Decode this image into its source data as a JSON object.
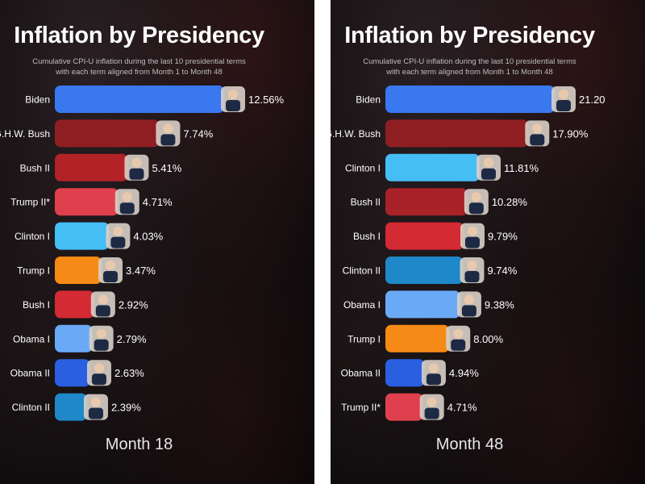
{
  "chart_data": [
    {
      "type": "bar",
      "orientation": "horizontal",
      "title": "Inflation by Presidency",
      "subtitle_lines": [
        "Cumulative CPI-U inflation during the last 10 presidential terms",
        "with each term aligned from Month 1 to Month 48"
      ],
      "period_label": "Month 18",
      "value_unit": "%",
      "xlim": [
        0,
        12.56
      ],
      "categories": [
        "Biden",
        "G.H.W. Bush",
        "Bush II",
        "Trump II*",
        "Clinton I",
        "Trump I",
        "Bush I",
        "Obama I",
        "Obama II",
        "Clinton II"
      ],
      "values": [
        12.56,
        7.74,
        5.41,
        4.71,
        4.03,
        3.47,
        2.92,
        2.79,
        2.63,
        2.39
      ],
      "value_labels": [
        "12.56%",
        "7.74%",
        "5.41%",
        "4.71%",
        "4.03%",
        "3.47%",
        "2.92%",
        "2.79%",
        "2.63%",
        "2.39%"
      ],
      "colors": [
        "#3a78f0",
        "#8e1e22",
        "#b22227",
        "#e0404e",
        "#45bdf5",
        "#f58a16",
        "#d32a33",
        "#6aa9f5",
        "#2a5fe0",
        "#1f88c8"
      ]
    },
    {
      "type": "bar",
      "orientation": "horizontal",
      "title": "Inflation by Presidency",
      "subtitle_lines": [
        "Cumulative CPI-U inflation during the last 10 presidential terms",
        "with each term aligned from Month 1 to Month 48"
      ],
      "period_label": "Month 48",
      "value_unit": "%",
      "xlim": [
        0,
        21.2
      ],
      "categories": [
        "Biden",
        "G.H.W. Bush",
        "Clinton I",
        "Bush II",
        "Bush I",
        "Clinton II",
        "Obama I",
        "Trump I",
        "Obama II",
        "Trump II*"
      ],
      "values": [
        21.2,
        17.9,
        11.81,
        10.28,
        9.79,
        9.74,
        9.38,
        8.0,
        4.94,
        4.71
      ],
      "value_labels": [
        "21.20",
        "17.90%",
        "11.81%",
        "10.28%",
        "9.79%",
        "9.74%",
        "9.38%",
        "8.00%",
        "4.94%",
        "4.71%"
      ],
      "colors": [
        "#3a78f0",
        "#8e1e22",
        "#45bdf5",
        "#a82228",
        "#d32a33",
        "#1f88c8",
        "#6aa9f5",
        "#f58a16",
        "#2a5fe0",
        "#e0404e"
      ]
    }
  ]
}
